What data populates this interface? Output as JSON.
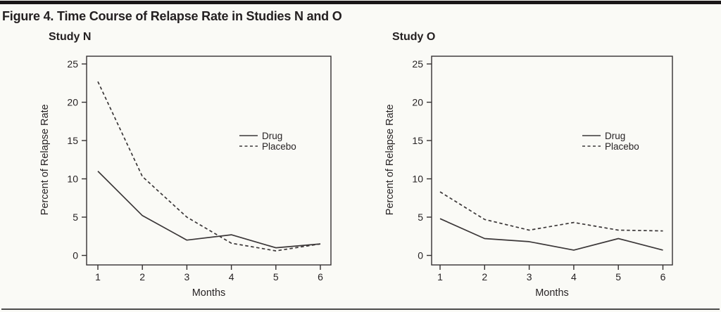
{
  "figure": {
    "title": "Figure 4. Time Course of Relapse Rate in Studies N and O"
  },
  "colors": {
    "line": "#3b3738",
    "text": "#272324",
    "frame": "#343031",
    "background": "#fafaf6",
    "top_rule": "#1a1718",
    "bottom_rule": "#4c4c4c"
  },
  "chart_data": [
    {
      "type": "line",
      "subtitle": "Study N",
      "xlabel": "Months",
      "ylabel": "Percent of Relapse Rate",
      "x": [
        1,
        2,
        3,
        4,
        5,
        6
      ],
      "y_ticks": [
        0,
        5,
        10,
        15,
        20,
        25
      ],
      "ylim": [
        -1.2,
        26
      ],
      "xlim": [
        0.75,
        6.25
      ],
      "grid": false,
      "legend_position": "center-right",
      "series": [
        {
          "name": "Drug",
          "line_style": "solid",
          "values": [
            11,
            5.2,
            2,
            2.7,
            1,
            1.5
          ]
        },
        {
          "name": "Placebo",
          "line_style": "dashed",
          "values": [
            22.7,
            10.3,
            5,
            1.6,
            0.6,
            1.5
          ]
        }
      ]
    },
    {
      "type": "line",
      "subtitle": "Study O",
      "xlabel": "Months",
      "ylabel": "Percent of Relapse Rate",
      "x": [
        1,
        2,
        3,
        4,
        5,
        6
      ],
      "y_ticks": [
        0,
        5,
        10,
        15,
        20,
        25
      ],
      "ylim": [
        -1.2,
        26
      ],
      "xlim": [
        0.75,
        6.25
      ],
      "grid": false,
      "legend_position": "center-right",
      "series": [
        {
          "name": "Drug",
          "line_style": "solid",
          "values": [
            4.8,
            2.2,
            1.8,
            0.7,
            2.2,
            0.7
          ]
        },
        {
          "name": "Placebo",
          "line_style": "dashed",
          "values": [
            8.3,
            4.7,
            3.3,
            4.3,
            3.3,
            3.2
          ]
        }
      ]
    }
  ]
}
